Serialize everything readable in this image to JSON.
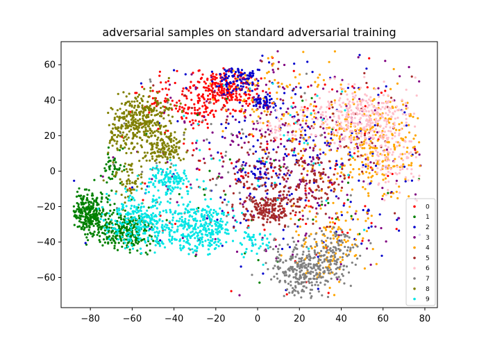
{
  "chart_data": {
    "type": "scatter",
    "title": "adversarial samples on standard adversarial training",
    "xlabel": "",
    "ylabel": "",
    "xlim": [
      -94,
      86
    ],
    "ylim": [
      -77,
      73
    ],
    "xticks": [
      -80,
      -60,
      -40,
      -20,
      0,
      20,
      40,
      60,
      80
    ],
    "yticks": [
      -60,
      -40,
      -20,
      0,
      20,
      40,
      60
    ],
    "grid": false,
    "legend_position": "lower-right",
    "series": [
      {
        "name": "0",
        "color": "#ff0000",
        "clusters": [
          {
            "cx": -15,
            "cy": 45,
            "sx": 8,
            "sy": 6,
            "n": 260
          },
          {
            "cx": -45,
            "cy": 40,
            "sx": 6,
            "sy": 5,
            "n": 60
          },
          {
            "cx": -30,
            "cy": 34,
            "sx": 5,
            "sy": 3,
            "n": 40
          },
          {
            "cx": 15,
            "cy": 0,
            "sx": 45,
            "sy": 40,
            "n": 140
          }
        ]
      },
      {
        "name": "1",
        "color": "#008000",
        "clusters": [
          {
            "cx": -81,
            "cy": -24,
            "sx": 4,
            "sy": 6,
            "n": 280
          },
          {
            "cx": -62,
            "cy": -33,
            "sx": 6,
            "sy": 6,
            "n": 260
          },
          {
            "cx": -69,
            "cy": 2,
            "sx": 3,
            "sy": 5,
            "n": 40
          },
          {
            "cx": 0,
            "cy": -5,
            "sx": 40,
            "sy": 35,
            "n": 40
          }
        ]
      },
      {
        "name": "2",
        "color": "#0000cc",
        "clusters": [
          {
            "cx": -10,
            "cy": 53,
            "sx": 5,
            "sy": 4,
            "n": 90
          },
          {
            "cx": 3,
            "cy": 39,
            "sx": 3,
            "sy": 2,
            "n": 50
          },
          {
            "cx": 0,
            "cy": 0,
            "sx": 3,
            "sy": 4,
            "n": 30
          },
          {
            "cx": 20,
            "cy": 5,
            "sx": 35,
            "sy": 40,
            "n": 200
          }
        ]
      },
      {
        "name": "3",
        "color": "#800080",
        "clusters": [
          {
            "cx": 15,
            "cy": 15,
            "sx": 30,
            "sy": 30,
            "n": 320
          }
        ]
      },
      {
        "name": "4",
        "color": "#ffa500",
        "clusters": [
          {
            "cx": 55,
            "cy": 15,
            "sx": 15,
            "sy": 15,
            "n": 300
          },
          {
            "cx": 35,
            "cy": -40,
            "sx": 10,
            "sy": 12,
            "n": 120
          },
          {
            "cx": 10,
            "cy": 40,
            "sx": 15,
            "sy": 15,
            "n": 90
          }
        ]
      },
      {
        "name": "5",
        "color": "#a52a2a",
        "clusters": [
          {
            "cx": 5,
            "cy": -22,
            "sx": 6,
            "sy": 4,
            "n": 180
          },
          {
            "cx": 15,
            "cy": -5,
            "sx": 15,
            "sy": 10,
            "n": 200
          },
          {
            "cx": 20,
            "cy": 20,
            "sx": 30,
            "sy": 25,
            "n": 80
          }
        ]
      },
      {
        "name": "6",
        "color": "#ffc0cb",
        "clusters": [
          {
            "cx": 48,
            "cy": 30,
            "sx": 12,
            "sy": 8,
            "n": 300
          },
          {
            "cx": 65,
            "cy": 10,
            "sx": 7,
            "sy": 12,
            "n": 120
          },
          {
            "cx": 10,
            "cy": 25,
            "sx": 5,
            "sy": 4,
            "n": 30
          }
        ]
      },
      {
        "name": "7",
        "color": "#808080",
        "clusters": [
          {
            "cx": 22,
            "cy": -55,
            "sx": 8,
            "sy": 8,
            "n": 300
          },
          {
            "cx": 40,
            "cy": -45,
            "sx": 6,
            "sy": 6,
            "n": 80
          },
          {
            "cx": -20,
            "cy": 10,
            "sx": 30,
            "sy": 30,
            "n": 60
          }
        ]
      },
      {
        "name": "8",
        "color": "#808000",
        "clusters": [
          {
            "cx": -55,
            "cy": 30,
            "sx": 8,
            "sy": 8,
            "n": 320
          },
          {
            "cx": -45,
            "cy": 12,
            "sx": 5,
            "sy": 4,
            "n": 120
          },
          {
            "cx": -65,
            "cy": 20,
            "sx": 4,
            "sy": 5,
            "n": 60
          },
          {
            "cx": -62,
            "cy": -5,
            "sx": 4,
            "sy": 6,
            "n": 60
          }
        ]
      },
      {
        "name": "9",
        "color": "#00e5e5",
        "clusters": [
          {
            "cx": -55,
            "cy": -28,
            "sx": 9,
            "sy": 8,
            "n": 300
          },
          {
            "cx": -28,
            "cy": -32,
            "sx": 8,
            "sy": 7,
            "n": 300
          },
          {
            "cx": -42,
            "cy": -5,
            "sx": 6,
            "sy": 4,
            "n": 120
          },
          {
            "cx": 0,
            "cy": -40,
            "sx": 4,
            "sy": 4,
            "n": 40
          },
          {
            "cx": 10,
            "cy": 20,
            "sx": 30,
            "sy": 30,
            "n": 40
          }
        ]
      }
    ]
  }
}
